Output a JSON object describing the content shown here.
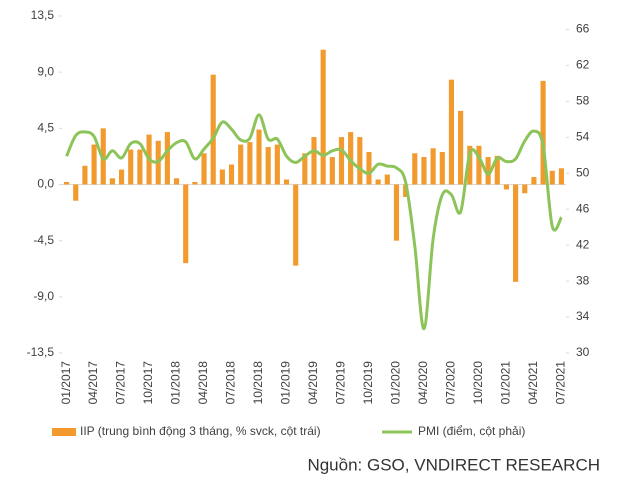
{
  "chart_data": {
    "type": "bar-line",
    "categories": [
      "01/2017",
      null,
      null,
      "04/2017",
      null,
      null,
      "07/2017",
      null,
      null,
      "10/2017",
      null,
      null,
      "01/2018",
      null,
      null,
      "04/2018",
      null,
      null,
      "07/2018",
      null,
      null,
      "10/2018",
      null,
      null,
      "01/2019",
      null,
      null,
      "04/2019",
      null,
      null,
      "07/2019",
      null,
      null,
      "10/2019",
      null,
      null,
      "01/2020",
      null,
      null,
      "04/2020",
      null,
      null,
      "07/2020",
      null,
      null,
      "10/2020",
      null,
      null,
      "01/2021",
      null,
      null,
      "04/2021",
      null,
      null,
      "07/2021"
    ],
    "series": [
      {
        "name": "IIP (trung bình động 3 tháng, % svck, cột trái)",
        "type": "bar",
        "color": "#f29a2e",
        "values": [
          0.2,
          -1.3,
          1.5,
          3.2,
          4.5,
          0.5,
          1.2,
          2.8,
          2.8,
          4.0,
          3.5,
          4.2,
          0.5,
          -6.3,
          0.2,
          2.5,
          8.8,
          1.2,
          1.6,
          3.2,
          3.4,
          4.4,
          3.0,
          3.2,
          0.4,
          -6.5,
          2.5,
          3.8,
          10.8,
          2.2,
          3.8,
          4.2,
          3.8,
          2.6,
          0.4,
          0.8,
          -4.5,
          -1.0,
          2.5,
          2.2,
          2.9,
          2.6,
          8.4,
          5.9,
          3.1,
          3.1,
          2.2,
          2.3,
          -0.4,
          -7.8,
          -0.7,
          0.6,
          8.3,
          1.1,
          1.3
        ]
      },
      {
        "name": "PMI (điểm, cột phải)",
        "type": "line",
        "axis": "y2",
        "color": "#8cc45a",
        "values": [
          51.9,
          54.2,
          54.6,
          54.1,
          51.6,
          52.5,
          51.7,
          53.3,
          53.3,
          51.6,
          51.3,
          52.5,
          53.4,
          53.5,
          51.6,
          52.7,
          53.9,
          55.7,
          54.9,
          53.7,
          53.9,
          56.5,
          53.8,
          53.8,
          51.9,
          51.2,
          51.9,
          52.5,
          52.0,
          52.5,
          52.6,
          51.4,
          50.5,
          50.0,
          51.0,
          50.8,
          50.6,
          49.0,
          41.9,
          32.7,
          42.7,
          47.6,
          47.6,
          45.7,
          52.2,
          51.8,
          49.9,
          51.7,
          51.3,
          51.6,
          53.6,
          54.7,
          53.1,
          44.1,
          45.1
        ]
      }
    ],
    "ylim": [
      -13.5,
      13.5
    ],
    "yticks": [
      {
        "value": -13.5,
        "label": "-13,5"
      },
      {
        "value": -9,
        "label": "-9,0"
      },
      {
        "value": -4.5,
        "label": "-4,5"
      },
      {
        "value": 0,
        "label": "0,0"
      },
      {
        "value": 4.5,
        "label": "4,5"
      },
      {
        "value": 9,
        "label": "9,0"
      },
      {
        "value": 13.5,
        "label": "13,5"
      }
    ],
    "y2lim": [
      30,
      67.5
    ],
    "y2ticks": [
      30,
      34,
      38,
      42,
      46,
      50,
      54,
      58,
      62,
      66
    ],
    "grid": false,
    "legend": "bottom",
    "source": "Nguồn: GSO, VNDIRECT RESEARCH"
  }
}
